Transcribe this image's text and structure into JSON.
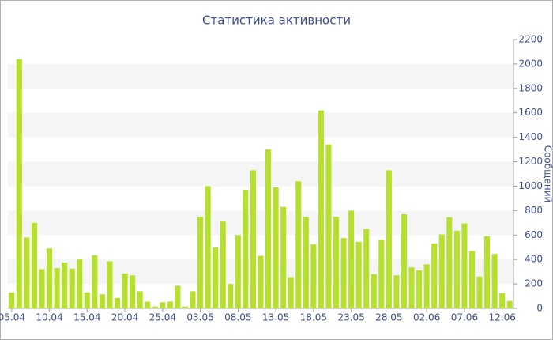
{
  "chart_data": {
    "type": "bar",
    "title": "Статистика активности",
    "y_label": "Сообщений",
    "categories": [
      "05.04",
      null,
      null,
      null,
      null,
      "10.04",
      null,
      null,
      null,
      null,
      "15.04",
      null,
      null,
      null,
      null,
      "20.04",
      null,
      null,
      null,
      null,
      "25.04",
      null,
      null,
      null,
      null,
      "03.05",
      null,
      null,
      null,
      null,
      "08.05",
      null,
      null,
      null,
      null,
      "13.05",
      null,
      null,
      null,
      null,
      "18.05",
      null,
      null,
      null,
      null,
      "23.05",
      null,
      null,
      null,
      null,
      "28.05",
      null,
      null,
      null,
      null,
      "02.06",
      null,
      null,
      null,
      null,
      "07.06",
      null,
      null,
      null,
      null,
      "12.06",
      null
    ],
    "values": [
      130,
      2040,
      580,
      700,
      320,
      490,
      330,
      375,
      325,
      400,
      130,
      435,
      115,
      385,
      85,
      285,
      270,
      140,
      55,
      15,
      50,
      55,
      185,
      15,
      140,
      750,
      1000,
      500,
      710,
      200,
      600,
      970,
      1130,
      430,
      1300,
      990,
      830,
      255,
      1040,
      750,
      525,
      1620,
      1340,
      750,
      575,
      800,
      545,
      650,
      280,
      560,
      1130,
      270,
      770,
      335,
      310,
      360,
      530,
      605,
      745,
      635,
      695,
      470,
      260,
      590,
      445,
      125,
      60
    ],
    "color": "#b5e02c",
    "ylim": [
      0,
      2200
    ],
    "yticks": [
      0,
      200,
      400,
      600,
      800,
      1000,
      1200,
      1400,
      1600,
      1800,
      2000,
      2200
    ],
    "grid_bands": true,
    "y_axis_side": "right"
  }
}
